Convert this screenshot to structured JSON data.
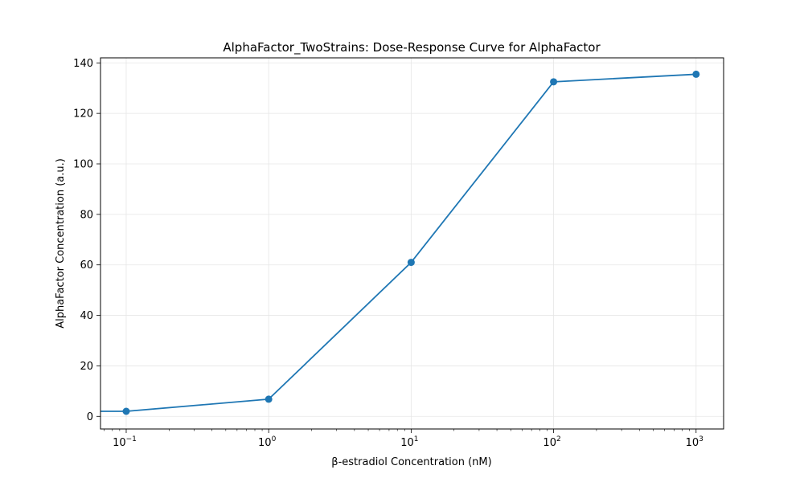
{
  "chart_data": {
    "type": "line",
    "title": "AlphaFactor_TwoStrains: Dose-Response Curve for AlphaFactor",
    "xlabel": "β-estradiol Concentration (nM)",
    "ylabel": "AlphaFactor Concentration (a.u.)",
    "x_scale": "log",
    "xlim": [
      0.066,
      1560
    ],
    "ylim": [
      -5,
      142
    ],
    "x_ticks": [
      {
        "value": 0.1,
        "base": "10",
        "exp": "−1"
      },
      {
        "value": 1,
        "base": "10",
        "exp": "0"
      },
      {
        "value": 10,
        "base": "10",
        "exp": "1"
      },
      {
        "value": 100,
        "base": "10",
        "exp": "2"
      },
      {
        "value": 1000,
        "base": "10",
        "exp": "3"
      }
    ],
    "y_ticks": [
      0,
      20,
      40,
      60,
      80,
      100,
      120,
      140
    ],
    "grid": true,
    "line_color": "#1f77b4",
    "series": [
      {
        "x": [
          0.066,
          0.1,
          1,
          10,
          100,
          1000
        ],
        "y": [
          2,
          2,
          6.8,
          61,
          132.5,
          135.5
        ],
        "markers": [
          false,
          true,
          true,
          true,
          true,
          true
        ]
      }
    ]
  }
}
